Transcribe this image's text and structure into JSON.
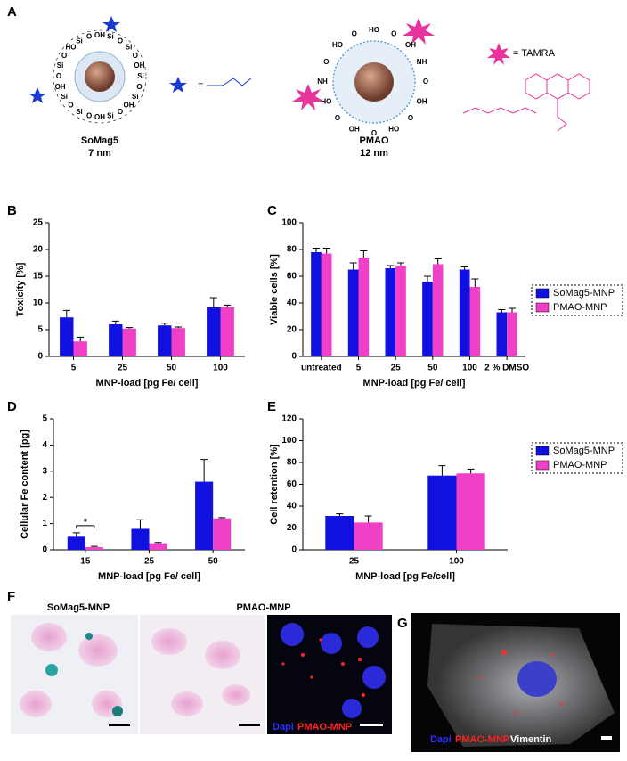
{
  "panel_labels": [
    "A",
    "B",
    "C",
    "D",
    "E",
    "F",
    "G"
  ],
  "panel_a": {
    "left_name": "SoMag5",
    "left_size": "7 nm",
    "right_name": "PMAO",
    "right_size": "12 nm",
    "phosphonate_legend": "=",
    "tamra_legend": "= TAMRA",
    "left_atoms": [
      "OH",
      "Si",
      "O",
      "Si",
      "O",
      "OH",
      "Si",
      "O",
      "Si",
      "OH",
      "O",
      "Si",
      "OH",
      "O",
      "Si",
      "O",
      "Si",
      "OH",
      "O",
      "Si",
      "O",
      "HO",
      "Si",
      "O"
    ],
    "right_atoms": [
      "HO",
      "O",
      "OH",
      "NH",
      "O",
      "OH",
      "O",
      "HO",
      "O",
      "OH",
      "O",
      "HO",
      "NH",
      "O",
      "HO",
      "O"
    ]
  },
  "chart_data": [
    {
      "type": "bar",
      "y_label": "Toxicity [%]",
      "x_label": "MNP-load [pg Fe/ cell]",
      "categories": [
        "5",
        "25",
        "50",
        "100"
      ],
      "ylim": [
        0,
        25
      ],
      "yticks": [
        0,
        5,
        10,
        15,
        20,
        25
      ],
      "series": [
        {
          "color": "#1010e0",
          "values": [
            7.3,
            6.0,
            5.8,
            9.2
          ],
          "errors": [
            1.3,
            0.6,
            0.4,
            1.8
          ]
        },
        {
          "color": "#f040c8",
          "values": [
            2.8,
            5.2,
            5.3,
            9.3
          ],
          "errors": [
            0.8,
            0.2,
            0.2,
            0.3
          ]
        }
      ]
    },
    {
      "type": "bar",
      "y_label": "Viable cells [%]",
      "x_label": "MNP-load [pg Fe/ cell]",
      "categories": [
        "untreated",
        "5",
        "25",
        "50",
        "100",
        "2 % DMSO"
      ],
      "ylim": [
        0,
        100
      ],
      "yticks": [
        0,
        20,
        40,
        60,
        80,
        100
      ],
      "legend": "right",
      "series": [
        {
          "name": "SoMag5-MNP",
          "color": "#1010e0",
          "values": [
            78,
            65,
            66,
            56,
            65,
            33
          ],
          "errors": [
            3,
            5,
            2,
            4,
            2,
            2
          ]
        },
        {
          "name": "PMAO-MNP",
          "color": "#f040c8",
          "values": [
            77,
            74,
            68,
            69,
            52,
            33
          ],
          "errors": [
            4,
            5,
            2,
            4,
            6,
            3
          ]
        }
      ]
    },
    {
      "type": "bar",
      "y_label": "Cellular Fe content [pg]",
      "x_label": "MNP-load [pg Fe/ cell]",
      "categories": [
        "15",
        "25",
        "50"
      ],
      "ylim": [
        0,
        5
      ],
      "yticks": [
        0,
        1,
        2,
        3,
        4,
        5
      ],
      "annotation": "*",
      "series": [
        {
          "color": "#1010e0",
          "values": [
            0.5,
            0.8,
            2.6
          ],
          "errors": [
            0.15,
            0.35,
            0.85
          ]
        },
        {
          "color": "#f040c8",
          "values": [
            0.1,
            0.25,
            1.2
          ],
          "errors": [
            0.03,
            0.03,
            0.03
          ]
        }
      ]
    },
    {
      "type": "bar",
      "y_label": "Cell retention [%]",
      "x_label": "MNP-load [pg Fe/cell]",
      "categories": [
        "25",
        "100"
      ],
      "ylim": [
        0,
        120
      ],
      "yticks": [
        0,
        20,
        40,
        60,
        80,
        100,
        120
      ],
      "legend": "right",
      "series": [
        {
          "name": "SoMag5-MNP",
          "color": "#1010e0",
          "values": [
            31,
            68
          ],
          "errors": [
            2,
            9
          ]
        },
        {
          "name": "PMAO-MNP",
          "color": "#f040c8",
          "values": [
            25,
            70
          ],
          "errors": [
            6,
            4
          ]
        }
      ]
    }
  ],
  "panel_f": {
    "left_title": "SoMag5-MNP",
    "right_title": "PMAO-MNP",
    "stain_dapi": "Dapi",
    "stain_mnp": "PMAO-MNP"
  },
  "panel_g": {
    "stain_dapi": "Dapi",
    "stain_mnp": "PMAO-MNP",
    "stain_vimentin": "Vimentin"
  }
}
